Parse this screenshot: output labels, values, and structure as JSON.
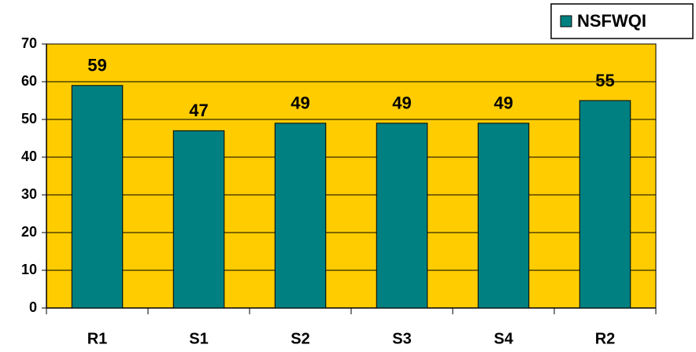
{
  "chart_data": {
    "type": "bar",
    "categories": [
      "R1",
      "S1",
      "S2",
      "S3",
      "S4",
      "R2"
    ],
    "series": [
      {
        "name": "NSFWQI",
        "color": "#008080",
        "values": [
          59,
          47,
          49,
          49,
          49,
          55
        ]
      }
    ],
    "ylim": [
      0,
      70
    ],
    "yticks": [
      0,
      10,
      20,
      30,
      40,
      50,
      60,
      70
    ],
    "grid": true,
    "plot_background": "#FFCC00",
    "legend": "top-right"
  }
}
